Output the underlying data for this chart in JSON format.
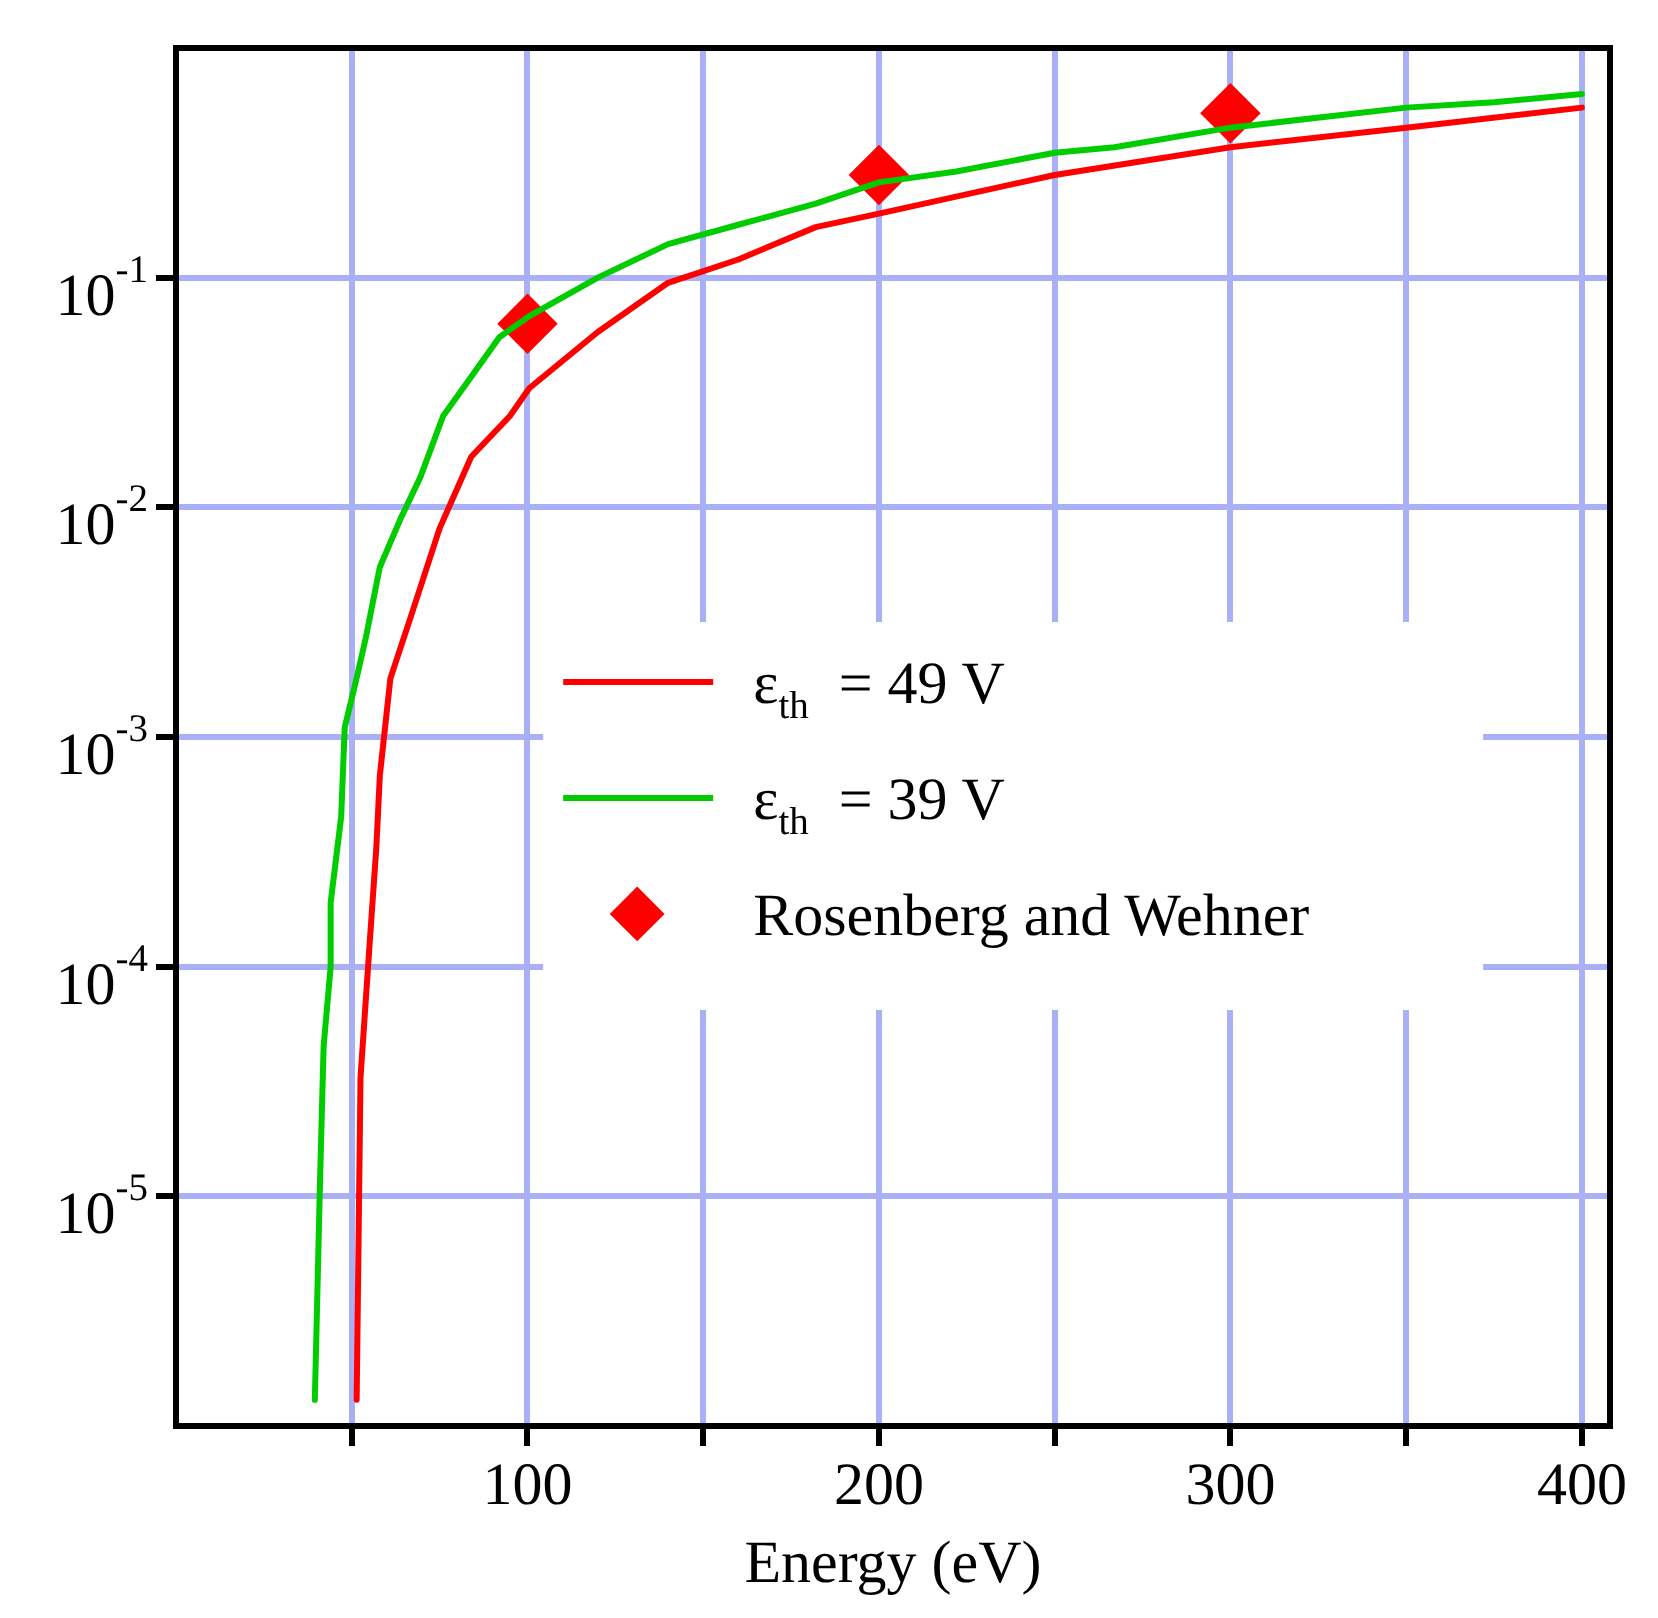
{
  "chart_data": {
    "type": "line",
    "xlabel": "Energy (eV)",
    "log": "y",
    "grid": true,
    "legend": "right",
    "xlim": [
      0,
      408
    ],
    "ylim": [
      1e-06,
      1
    ],
    "xticks": [
      {
        "value": 50,
        "label": null
      },
      100,
      {
        "value": 150,
        "label": null
      },
      200,
      {
        "value": 250,
        "label": null
      },
      300,
      {
        "value": 350,
        "label": null
      },
      400
    ],
    "yticks": [
      {
        "value": 1e-05,
        "label": "10$^{-5}$"
      },
      {
        "value": 0.0001,
        "label": "10$^{-4}$"
      },
      {
        "value": 0.001,
        "label": "10$^{-3}$"
      },
      {
        "value": 0.01,
        "label": "10$^{-2}$"
      },
      {
        "value": 0.1,
        "label": "10$^{-1}$"
      }
    ],
    "series": [
      {
        "name": "ε$_{th}$  = 49 V",
        "color": "#ff0000",
        "marker": "none",
        "line_style": "solid",
        "x": [
          51.4,
          52.5,
          55,
          57,
          58,
          61,
          66.7,
          75,
          84,
          95,
          100.5,
          120,
          140,
          160,
          182,
          200,
          250,
          300,
          350,
          400
        ],
        "values": [
          1.3e-06,
          3.3e-05,
          0.00012,
          0.00033,
          0.00068,
          0.0018,
          0.0033,
          0.0081,
          0.0166,
          0.025,
          0.033,
          0.058,
          0.095,
          0.12,
          0.166,
          0.19,
          0.28,
          0.37,
          0.45,
          0.55
        ]
      },
      {
        "name": "ε$_{th}$  = 39 V",
        "color": "#00cc00",
        "marker": "none",
        "line_style": "solid",
        "x": [
          39.5,
          41,
          42,
          44,
          44,
          47,
          48,
          51,
          54,
          58,
          64,
          69.5,
          76,
          84,
          92,
          100.5,
          120,
          140,
          160,
          182,
          200,
          222,
          250,
          267,
          300,
          350,
          375,
          400
        ],
        "values": [
          1.3e-06,
          1.2e-05,
          4.5e-05,
          0.0001,
          0.00019,
          0.00045,
          0.0011,
          0.0017,
          0.0027,
          0.0055,
          0.009,
          0.0135,
          0.025,
          0.037,
          0.055,
          0.068,
          0.1,
          0.14,
          0.17,
          0.21,
          0.26,
          0.29,
          0.35,
          0.37,
          0.45,
          0.55,
          0.58,
          0.63
        ]
      },
      {
        "name": "Rosenberg and Wehner",
        "type": "scatter",
        "color": "#ff0000",
        "marker": "diamond",
        "x": [
          100,
          200,
          300
        ],
        "values": [
          0.063,
          0.28,
          0.52
        ]
      }
    ]
  }
}
